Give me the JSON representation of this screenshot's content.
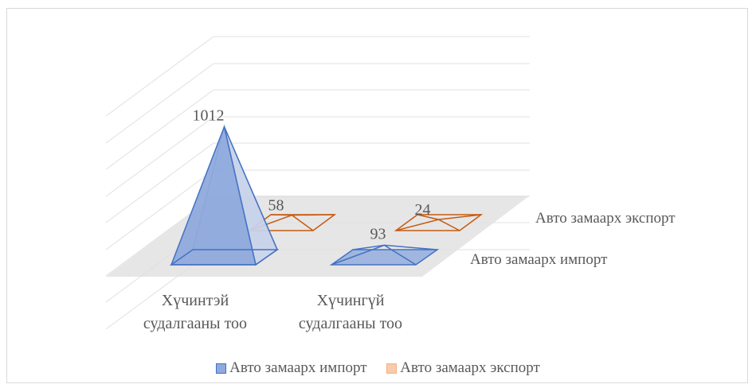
{
  "chart_data": {
    "type": "bar",
    "shape": "3d-pyramid",
    "categories": [
      "Хүчинтэй\nсудалгааны тоо",
      "Хүчингүй\nсудалгааны тоо"
    ],
    "series": [
      {
        "name": "Авто замаарх импорт",
        "values": [
          1012,
          93
        ],
        "color": "#4472c4",
        "fill": "#8faadc"
      },
      {
        "name": "Авто замаарх экспорт",
        "values": [
          58,
          24
        ],
        "color": "#c55a11",
        "fill": "#f4b183"
      }
    ],
    "data_labels": [
      "1012",
      "93",
      "58",
      "24"
    ],
    "depth_labels": [
      "Авто замаарх экспорт",
      "Авто замаарх импорт"
    ],
    "legend_position": "bottom",
    "grid": true,
    "ylim": [
      0,
      1200
    ]
  },
  "legend": {
    "items": [
      {
        "label": "Авто замаарх импорт",
        "color": "#8faadc",
        "border": "#4472c4"
      },
      {
        "label": "Авто замаарх экспорт",
        "color": "#f8cbad",
        "border": "#f4b183"
      }
    ]
  }
}
